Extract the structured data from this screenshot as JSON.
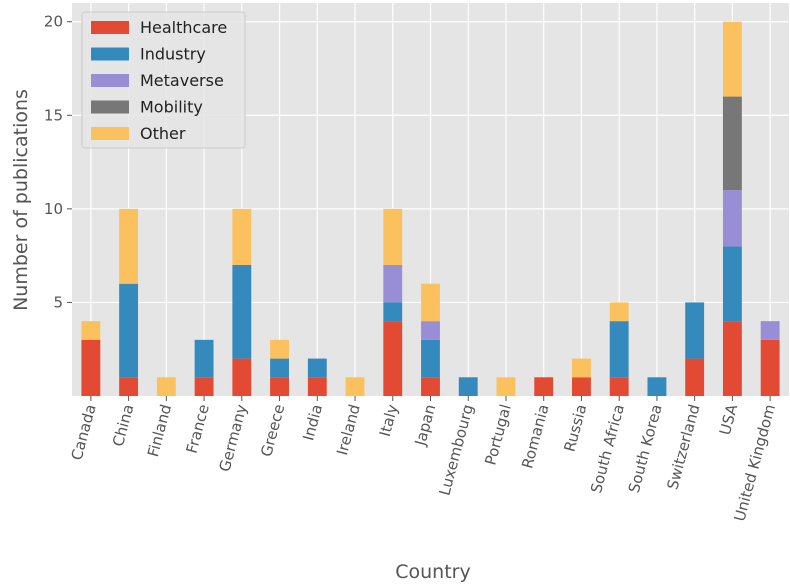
{
  "chart_data": {
    "type": "bar",
    "stacked": true,
    "xlabel": "Country",
    "ylabel": "Number of publications",
    "ylim": [
      0,
      21
    ],
    "yticks": [
      5,
      10,
      15,
      20
    ],
    "grid": true,
    "legend_position": "top-left",
    "categories": [
      "Canada",
      "China",
      "Finland",
      "France",
      "Germany",
      "Greece",
      "India",
      "Ireland",
      "Italy",
      "Japan",
      "Luxembourg",
      "Portugal",
      "Romania",
      "Russia",
      "South Africa",
      "South Korea",
      "Switzerland",
      "USA",
      "United Kingdom"
    ],
    "series": [
      {
        "name": "Healthcare",
        "color": "#E24A33",
        "values": [
          3,
          1,
          0,
          1,
          2,
          1,
          1,
          0,
          4,
          1,
          0,
          0,
          1,
          1,
          1,
          0,
          2,
          4,
          3
        ]
      },
      {
        "name": "Industry",
        "color": "#348ABD",
        "values": [
          0,
          5,
          0,
          2,
          5,
          1,
          1,
          0,
          1,
          2,
          1,
          0,
          0,
          0,
          3,
          1,
          3,
          4,
          0
        ]
      },
      {
        "name": "Metaverse",
        "color": "#988ED5",
        "values": [
          0,
          0,
          0,
          0,
          0,
          0,
          0,
          0,
          2,
          1,
          0,
          0,
          0,
          0,
          0,
          0,
          0,
          3,
          1
        ]
      },
      {
        "name": "Mobility",
        "color": "#777777",
        "values": [
          0,
          0,
          0,
          0,
          0,
          0,
          0,
          0,
          0,
          0,
          0,
          0,
          0,
          0,
          0,
          0,
          0,
          5,
          0
        ]
      },
      {
        "name": "Other",
        "color": "#FBC15E",
        "values": [
          1,
          4,
          1,
          0,
          3,
          1,
          0,
          1,
          3,
          2,
          0,
          1,
          0,
          1,
          1,
          0,
          0,
          4,
          0
        ]
      }
    ]
  }
}
